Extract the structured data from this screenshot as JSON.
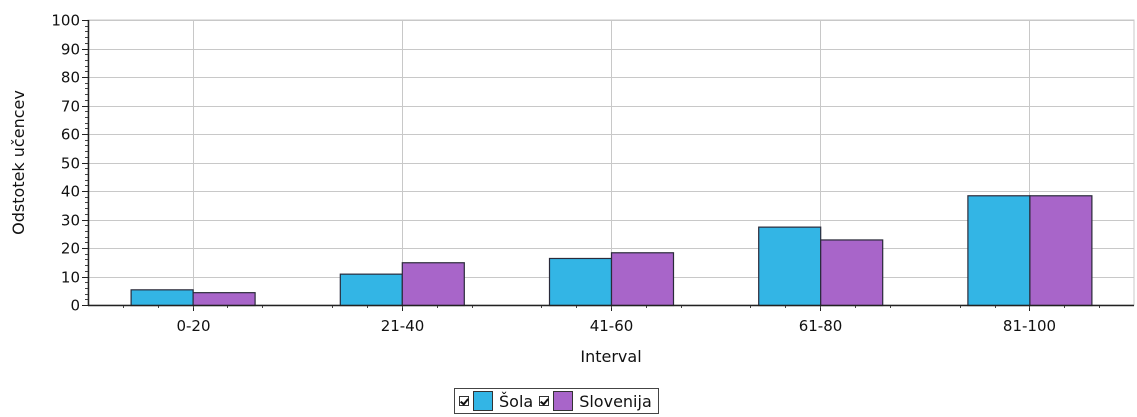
{
  "chart_data": {
    "type": "bar",
    "categories": [
      "0-20",
      "21-40",
      "41-60",
      "61-80",
      "81-100"
    ],
    "series": [
      {
        "name": "Šola",
        "values": [
          5.5,
          11,
          16.5,
          27.5,
          38.5
        ],
        "color": "#33b5e5"
      },
      {
        "name": "Slovenija",
        "values": [
          4.5,
          15,
          18.5,
          23,
          38.5
        ],
        "color": "#a865c9"
      }
    ],
    "xlabel": "Interval",
    "ylabel": "Odstotek učencev",
    "ylim": [
      0,
      100
    ],
    "yticks": [
      0,
      10,
      20,
      30,
      40,
      50,
      60,
      70,
      80,
      90,
      100
    ],
    "grid": true,
    "legend_position": "bottom-center"
  }
}
